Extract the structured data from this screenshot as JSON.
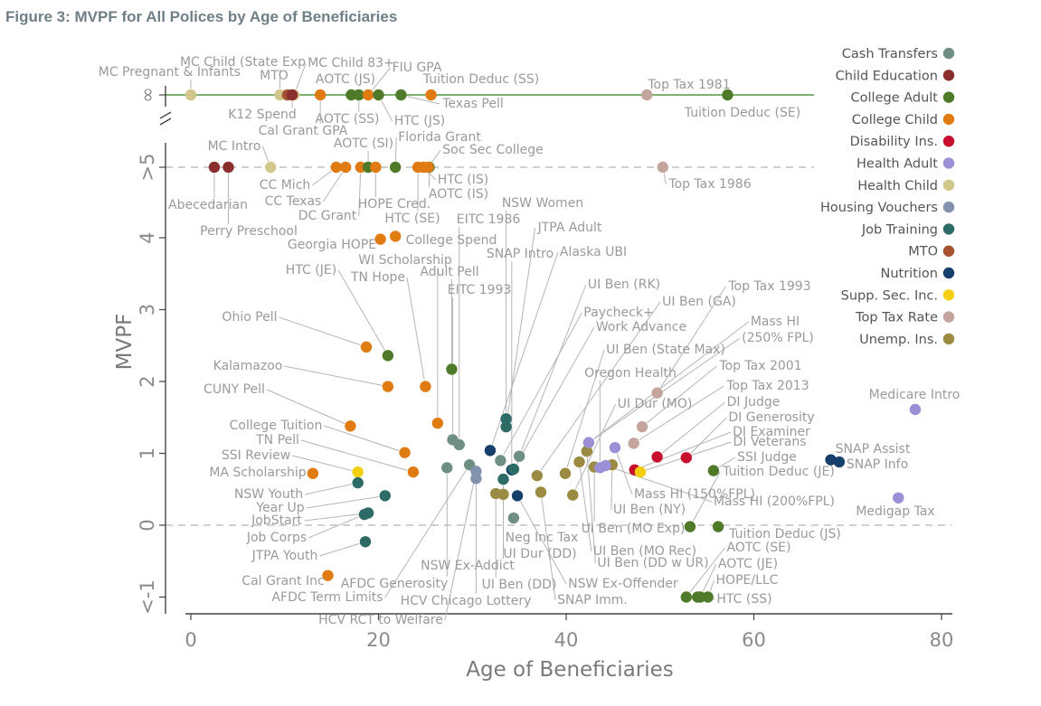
{
  "title": "Figure 3: MVPF for All Polices by Age of Beneficiaries",
  "chart_data": {
    "type": "scatter",
    "xlabel": "Age of Beneficiaries",
    "ylabel": "MVPF",
    "xlim": [
      0,
      80
    ],
    "x_ticks": [
      "0",
      "20",
      "40",
      "60",
      "80"
    ],
    "y_ticks": [
      {
        "label": "<-1",
        "value": -1
      },
      {
        "label": "0",
        "value": 0
      },
      {
        "label": "1",
        "value": 1
      },
      {
        "label": "2",
        "value": 2
      },
      {
        "label": "3",
        "value": 3
      },
      {
        "label": "4",
        "value": 4
      },
      {
        "label": ">5",
        "value": 5
      },
      {
        "label": "∞",
        "value": "inf"
      }
    ],
    "grid": false,
    "legend_position": "right",
    "categories": [
      {
        "name": "Cash Transfers",
        "color": "#6f8f83"
      },
      {
        "name": "Child Education",
        "color": "#8b2e2e"
      },
      {
        "name": "College Adult",
        "color": "#4f7a2a"
      },
      {
        "name": "College Child",
        "color": "#e07b12"
      },
      {
        "name": "Disability Ins.",
        "color": "#c8102e"
      },
      {
        "name": "Health Adult",
        "color": "#9b8fd6"
      },
      {
        "name": "Health Child",
        "color": "#d2c78a"
      },
      {
        "name": "Housing Vouchers",
        "color": "#8392ad"
      },
      {
        "name": "Job Training",
        "color": "#2c6b66"
      },
      {
        "name": "MTO",
        "color": "#a65130"
      },
      {
        "name": "Nutrition",
        "color": "#173f6b"
      },
      {
        "name": "Supp. Sec. Inc.",
        "color": "#f4cf10"
      },
      {
        "name": "Top Tax Rate",
        "color": "#c4a59d"
      },
      {
        "name": "Unemp. Ins.",
        "color": "#9a8a42"
      }
    ],
    "points": [
      {
        "label": "MC Pregnant & Infants",
        "x": 0,
        "y": "inf",
        "cat": 6
      },
      {
        "label": "MC Child (State Exp)",
        "x": 9.5,
        "y": "inf",
        "cat": 6
      },
      {
        "label": "MTO",
        "x": 10.3,
        "y": "inf",
        "cat": 9
      },
      {
        "label": "MC Child 83+",
        "x": 11,
        "y": "inf",
        "cat": 6
      },
      {
        "label": "K12 Spend",
        "x": 10.8,
        "y": "inf",
        "cat": 1
      },
      {
        "label": "Cal Grant GPA",
        "x": 13.8,
        "y": "inf",
        "cat": 3
      },
      {
        "label": "AOTC (JS)",
        "x": 17.1,
        "y": "inf",
        "cat": 2
      },
      {
        "label": "AOTC (SS)",
        "x": 17.9,
        "y": "inf",
        "cat": 2
      },
      {
        "label": "FIU GPA",
        "x": 18.9,
        "y": "inf",
        "cat": 3
      },
      {
        "label": "HTC (JS)",
        "x": 20,
        "y": "inf",
        "cat": 2
      },
      {
        "label": "Texas Pell",
        "x": 22.4,
        "y": "inf",
        "cat": 2
      },
      {
        "label": "Tuition Deduc (SS)",
        "x": 25.6,
        "y": "inf",
        "cat": 3
      },
      {
        "label": "Top Tax 1981",
        "x": 48.6,
        "y": "inf",
        "cat": 12
      },
      {
        "label": "Tuition Deduc (SE)",
        "x": 57.2,
        "y": "inf",
        "cat": 2
      },
      {
        "label": "Abecedarian",
        "x": 2.5,
        "y": 5,
        "cat": 1
      },
      {
        "label": "Perry Preschool",
        "x": 4,
        "y": 5,
        "cat": 1
      },
      {
        "label": "MC Intro",
        "x": 8.5,
        "y": 5,
        "cat": 6
      },
      {
        "label": "CC Mich",
        "x": 15.5,
        "y": 5,
        "cat": 3
      },
      {
        "label": "CC Texas",
        "x": 16.5,
        "y": 5,
        "cat": 3
      },
      {
        "label": "DC Grant",
        "x": 18.1,
        "y": 5,
        "cat": 3
      },
      {
        "label": "AOTC (SI)",
        "x": 18.9,
        "y": 5,
        "cat": 2
      },
      {
        "label": "HOPE Cred.",
        "x": 19.7,
        "y": 5,
        "cat": 3
      },
      {
        "label": "Florida Grant",
        "x": 21.8,
        "y": 5,
        "cat": 2
      },
      {
        "label": "HTC (SE)",
        "x": 24.2,
        "y": 5,
        "cat": 3
      },
      {
        "label": "HTC (IS)",
        "x": 24.8,
        "y": 5,
        "cat": 3
      },
      {
        "label": "AOTC (IS)",
        "x": 25.4,
        "y": 5,
        "cat": 2
      },
      {
        "label": "Soc Sec College",
        "x": 25.3,
        "y": 5,
        "cat": 3
      },
      {
        "label": "Top Tax 1986",
        "x": 50.3,
        "y": 5,
        "cat": 12
      },
      {
        "label": "Georgia HOPE",
        "x": 20.2,
        "y": 3.98,
        "cat": 3
      },
      {
        "label": "College Spend",
        "x": 21.8,
        "y": 4.02,
        "cat": 3
      },
      {
        "label": "Ohio Pell",
        "x": 18.7,
        "y": 2.48,
        "cat": 3
      },
      {
        "label": "HTC (JE)",
        "x": 21,
        "y": 2.36,
        "cat": 2
      },
      {
        "label": "Kalamazoo",
        "x": 21,
        "y": 1.93,
        "cat": 3
      },
      {
        "label": "TN Hope",
        "x": 25,
        "y": 1.93,
        "cat": 3
      },
      {
        "label": "Adult Pell",
        "x": 27.8,
        "y": 2.17,
        "cat": 2
      },
      {
        "label": "CUNY Pell",
        "x": 17,
        "y": 1.38,
        "cat": 3
      },
      {
        "label": "WI Scholarship",
        "x": 26.3,
        "y": 1.42,
        "cat": 3
      },
      {
        "label": "College Tuition",
        "x": 22.8,
        "y": 1.01,
        "cat": 3
      },
      {
        "label": "TN Pell",
        "x": 23.7,
        "y": 0.74,
        "cat": 3
      },
      {
        "label": "MA Scholarship",
        "x": 13,
        "y": 0.72,
        "cat": 3
      },
      {
        "label": "SSI Review",
        "x": 17.8,
        "y": 0.74,
        "cat": 11
      },
      {
        "label": "NSW Youth",
        "x": 17.8,
        "y": 0.59,
        "cat": 8
      },
      {
        "label": "Year Up",
        "x": 20.7,
        "y": 0.41,
        "cat": 8
      },
      {
        "label": "JobStart",
        "x": 18.9,
        "y": 0.17,
        "cat": 8
      },
      {
        "label": "Job Corps",
        "x": 18.5,
        "y": 0.15,
        "cat": 8
      },
      {
        "label": "JTPA Youth",
        "x": 18.6,
        "y": -0.23,
        "cat": 8
      },
      {
        "label": "Cal Grant Inc",
        "x": 14.6,
        "y": -0.7,
        "cat": 3
      },
      {
        "label": "EITC 1993",
        "x": 27.9,
        "y": 1.19,
        "cat": 0
      },
      {
        "label": "EITC 1986",
        "x": 28.6,
        "y": 1.12,
        "cat": 0
      },
      {
        "label": "AFDC Generosity",
        "x": 27.3,
        "y": 0.8,
        "cat": 0
      },
      {
        "label": "AFDC Term Limits",
        "x": 29.7,
        "y": 0.84,
        "cat": 0
      },
      {
        "label": "HCV RCT to Welfare",
        "x": 30.4,
        "y": 0.75,
        "cat": 7
      },
      {
        "label": "HCV Chicago Lottery",
        "x": 30.4,
        "y": 0.65,
        "cat": 7
      },
      {
        "label": "NSW Women",
        "x": 33.6,
        "y": 1.48,
        "cat": 8
      },
      {
        "label": "JTPA Adult",
        "x": 33.6,
        "y": 1.37,
        "cat": 8
      },
      {
        "label": "Alaska UBI",
        "x": 31.9,
        "y": 1.04,
        "cat": 10
      },
      {
        "label": "SNAP Intro",
        "x": 34.2,
        "y": 0.77,
        "cat": 10
      },
      {
        "label": "NSW Ex-Addict",
        "x": 33.3,
        "y": 0.64,
        "cat": 8
      },
      {
        "label": "UI Ben (RK)",
        "x": 35,
        "y": 0.96,
        "cat": 0
      },
      {
        "label": "Paycheck+",
        "x": 33,
        "y": 0.9,
        "cat": 0
      },
      {
        "label": "Work Advance",
        "x": 34.4,
        "y": 0.78,
        "cat": 8
      },
      {
        "label": "UI Ben (GA)",
        "x": 36.9,
        "y": 0.69,
        "cat": 13
      },
      {
        "label": "UI Ben (DD)",
        "x": 32.5,
        "y": 0.44,
        "cat": 13
      },
      {
        "label": "UI Dur (DD)",
        "x": 33.3,
        "y": 0.43,
        "cat": 13
      },
      {
        "label": "Neg Inc Tax",
        "x": 34.4,
        "y": 0.1,
        "cat": 0
      },
      {
        "label": "NSW Ex-Offender",
        "x": 34.8,
        "y": 0.41,
        "cat": 10
      },
      {
        "label": "SNAP Imm.",
        "x": 37.3,
        "y": 0.46,
        "cat": 13
      },
      {
        "label": "UI Ben (State Max)",
        "x": 39.9,
        "y": 0.72,
        "cat": 13
      },
      {
        "label": "UI Dur (MO)",
        "x": 40.7,
        "y": 0.42,
        "cat": 13
      },
      {
        "label": "UI Ben (MO Rec)",
        "x": 41.4,
        "y": 0.88,
        "cat": 13
      },
      {
        "label": "UI Ben (DD w UR)",
        "x": 42.2,
        "y": 1.03,
        "cat": 13
      },
      {
        "label": "UI Ben (MO Exp)",
        "x": 43,
        "y": 0.81,
        "cat": 13
      },
      {
        "label": "UI Ben (NY)",
        "x": 44.9,
        "y": 0.84,
        "cat": 13
      },
      {
        "label": "Oregon Health",
        "x": 43.6,
        "y": 0.8,
        "cat": 5
      },
      {
        "label": "Mass HI (150%FPL)",
        "x": 45.2,
        "y": 1.08,
        "cat": 5
      },
      {
        "label": "Mass HI (200%FPL)",
        "x": 44.2,
        "y": 0.83,
        "cat": 5
      },
      {
        "label": "Mass HI (250% FPL)",
        "x": 42.4,
        "y": 1.15,
        "cat": 5
      },
      {
        "label": "Top Tax 1993",
        "x": 49.7,
        "y": 1.84,
        "cat": 12
      },
      {
        "label": "Top Tax 2001",
        "x": 48.1,
        "y": 1.37,
        "cat": 12
      },
      {
        "label": "Top Tax 2013",
        "x": 47.2,
        "y": 1.14,
        "cat": 12
      },
      {
        "label": "DI Judge",
        "x": 49.7,
        "y": 0.95,
        "cat": 4
      },
      {
        "label": "DI Generosity",
        "x": 52.8,
        "y": 0.94,
        "cat": 4
      },
      {
        "label": "DI Examiner",
        "x": 47.3,
        "y": 0.77,
        "cat": 4
      },
      {
        "label": "DI Veterans",
        "x": 47.9,
        "y": 0.74,
        "cat": 11
      },
      {
        "label": "SSI Judge",
        "x": 55.7,
        "y": 0.76,
        "cat": 2
      },
      {
        "label": "Tuition Deduc (JE)",
        "x": 53.2,
        "y": -0.02,
        "cat": 2
      },
      {
        "label": "Tuition Deduc (JS)",
        "x": 56.2,
        "y": -0.02,
        "cat": 2
      },
      {
        "label": "AOTC (SE)",
        "x": 52.8,
        "y": -1.0,
        "cat": 2
      },
      {
        "label": "AOTC (JE)",
        "x": 54.3,
        "y": -1.0,
        "cat": 2
      },
      {
        "label": "HOPE/LLC",
        "x": 55.1,
        "y": -1.0,
        "cat": 2
      },
      {
        "label": "HTC (SS)",
        "x": 54,
        "y": -1.0,
        "cat": 2
      },
      {
        "label": "SNAP Assist",
        "x": 68.2,
        "y": 0.91,
        "cat": 10
      },
      {
        "label": "SNAP Info",
        "x": 69.1,
        "y": 0.88,
        "cat": 10
      },
      {
        "label": "Medicare Intro",
        "x": 77.2,
        "y": 1.61,
        "cat": 5
      },
      {
        "label": "Medigap Tax",
        "x": 75.4,
        "y": 0.38,
        "cat": 5
      }
    ],
    "labels": [
      {
        "text": "MC Child (State Exp",
        "x": 0,
        "y": "inf",
        "to": "MC Child (State Exp)"
      },
      {
        "text": "MC Pregnant & Infants",
        "x": 0,
        "y": "inf",
        "to": "MC Pregnant & Infants"
      },
      {
        "text": "MTO",
        "x": 0,
        "y": "inf",
        "to": "MTO"
      },
      {
        "text": "MC Child 83+",
        "x": 0,
        "y": "inf",
        "to": "MC Child 83+"
      },
      {
        "text": "FIU GPA",
        "x": 0,
        "y": "inf",
        "to": "FIU GPA"
      },
      {
        "text": "AOTC (JS)",
        "x": 0,
        "y": "inf",
        "to": "AOTC (JS)"
      },
      {
        "text": "Tuition Deduc (SS)",
        "x": 0,
        "y": "inf",
        "to": "Tuition Deduc (SS)"
      },
      {
        "text": "K12 Spend",
        "x": 0,
        "y": "inf",
        "to": "K12 Spend"
      },
      {
        "text": "AOTC (SS)",
        "x": 0,
        "y": "inf",
        "to": "AOTC (SS)"
      },
      {
        "text": "HTC (JS)",
        "x": 0,
        "y": "inf",
        "to": "HTC (JS)"
      },
      {
        "text": "Texas Pell",
        "x": 0,
        "y": "inf",
        "to": "Texas Pell"
      },
      {
        "text": "Cal Grant GPA",
        "x": 0,
        "y": "inf",
        "to": "Cal Grant GPA"
      },
      {
        "text": "Top Tax 1981",
        "x": 0,
        "y": "inf",
        "to": "Top Tax 1981"
      },
      {
        "text": "Tuition Deduc (SE)",
        "x": 0,
        "y": "inf",
        "to": "Tuition Deduc (SE)"
      },
      {
        "text": "AOTC (SI)",
        "to": "AOTC (SI)"
      },
      {
        "text": "Florida Grant",
        "to": "Florida Grant"
      },
      {
        "text": "MC Intro",
        "to": "MC Intro"
      },
      {
        "text": "Soc Sec College",
        "to": "Soc Sec College"
      },
      {
        "text": "HTC (IS)",
        "to": "HTC (IS)"
      },
      {
        "text": "AOTC (IS)",
        "to": "AOTC (IS)"
      },
      {
        "text": "CC Mich",
        "to": "CC Mich"
      },
      {
        "text": "CC Texas",
        "to": "CC Texas"
      },
      {
        "text": "Abecedarian",
        "to": "Abecedarian"
      },
      {
        "text": "HOPE Cred.",
        "to": "HOPE Cred."
      },
      {
        "text": "DC Grant",
        "to": "DC Grant"
      },
      {
        "text": "HTC (SE)",
        "to": "HTC (SE)"
      },
      {
        "text": "Perry Preschool",
        "to": "Perry Preschool"
      },
      {
        "text": "Top Tax 1986",
        "to": "Top Tax 1986"
      },
      {
        "text": "NSW Women",
        "to": "NSW Women"
      },
      {
        "text": "EITC 1986",
        "to": "EITC 1986"
      },
      {
        "text": "JTPA Adult",
        "to": "JTPA Adult"
      },
      {
        "text": "Georgia HOPE",
        "to": "Georgia HOPE"
      },
      {
        "text": "College Spend",
        "to": "College Spend"
      },
      {
        "text": "SNAP Intro",
        "to": "SNAP Intro"
      },
      {
        "text": "Alaska UBI",
        "to": "Alaska UBI"
      },
      {
        "text": "WI Scholarship",
        "to": "WI Scholarship"
      },
      {
        "text": "HTC (JE)",
        "to": "HTC (JE)"
      },
      {
        "text": "Adult Pell",
        "to": "Adult Pell"
      },
      {
        "text": "TN Hope",
        "to": "TN Hope"
      },
      {
        "text": "EITC 1993",
        "to": "EITC 1993"
      },
      {
        "text": "UI Ben (RK)",
        "to": "UI Ben (RK)"
      },
      {
        "text": "Top Tax 1993",
        "to": "Top Tax 1993"
      },
      {
        "text": "UI Ben (GA)",
        "to": "UI Ben (GA)"
      },
      {
        "text": "Paycheck+",
        "to": "Paycheck+"
      },
      {
        "text": "Mass HI",
        "to": "Mass HI (250% FPL)"
      },
      {
        "text": "Work Advance",
        "to": "Work Advance"
      },
      {
        "text": "(250% FPL)",
        "to": "Mass HI (250% FPL)"
      },
      {
        "text": "UI Ben (State Max)",
        "to": "UI Ben (State Max)"
      },
      {
        "text": "Ohio Pell",
        "to": "Ohio Pell"
      },
      {
        "text": "Top Tax 2001",
        "to": "Top Tax 2001"
      },
      {
        "text": "Oregon Health",
        "to": "Oregon Health"
      },
      {
        "text": "Kalamazoo",
        "to": "Kalamazoo"
      },
      {
        "text": "Top Tax 2013",
        "to": "Top Tax 2013"
      },
      {
        "text": "CUNY Pell",
        "to": "CUNY Pell"
      },
      {
        "text": "DI Judge",
        "to": "DI Judge"
      },
      {
        "text": "UI Dur (MO)",
        "to": "UI Dur (MO)"
      },
      {
        "text": "DI Generosity",
        "to": "DI Generosity"
      },
      {
        "text": "College Tuition",
        "to": "College Tuition"
      },
      {
        "text": "DI Examiner",
        "to": "DI Examiner"
      },
      {
        "text": "TN Pell",
        "to": "TN Pell"
      },
      {
        "text": "DI Veterans",
        "to": "DI Veterans"
      },
      {
        "text": "SNAP Assist",
        "to": "SNAP Assist"
      },
      {
        "text": "SSI Review",
        "to": "SSI Review"
      },
      {
        "text": "SSI Judge",
        "to": "SSI Judge"
      },
      {
        "text": "SNAP Info",
        "to": "SNAP Info"
      },
      {
        "text": "MA Scholarship",
        "to": "MA Scholarship"
      },
      {
        "text": "Tuition Deduc (JE)",
        "to": "Tuition Deduc (JE)"
      },
      {
        "text": "Mass HI (150%FPL)",
        "to": "Mass HI (150%FPL)"
      },
      {
        "text": "NSW Youth",
        "to": "NSW Youth"
      },
      {
        "text": "Mass HI (200%FPL)",
        "to": "Mass HI (200%FPL)"
      },
      {
        "text": "UI Ben (NY)",
        "to": "UI Ben (NY)"
      },
      {
        "text": "Year Up",
        "to": "Year Up"
      },
      {
        "text": "Medigap Tax",
        "to": "Medigap Tax"
      },
      {
        "text": "JobStart",
        "to": "JobStart"
      },
      {
        "text": "UI Ben (MO Exp)",
        "to": "UI Ben (MO Exp)"
      },
      {
        "text": "Neg Inc Tax",
        "to": "Neg Inc Tax"
      },
      {
        "text": "Tuition Deduc (JS)",
        "to": "Tuition Deduc (JS)"
      },
      {
        "text": "Job Corps",
        "to": "Job Corps"
      },
      {
        "text": "AOTC (SE)",
        "to": "AOTC (SE)"
      },
      {
        "text": "UI Dur (DD)",
        "to": "UI Dur (DD)"
      },
      {
        "text": "UI Ben (MO Rec)",
        "to": "UI Ben (MO Rec)"
      },
      {
        "text": "JTPA Youth",
        "to": "JTPA Youth"
      },
      {
        "text": "NSW Ex-Addict",
        "to": "NSW Ex-Addict"
      },
      {
        "text": "UI Ben (DD w UR)",
        "to": "UI Ben (DD w UR)"
      },
      {
        "text": "AOTC (JE)",
        "to": "AOTC (JE)"
      },
      {
        "text": "Cal Grant Inc",
        "to": "Cal Grant Inc"
      },
      {
        "text": "AFDC Generosity",
        "to": "AFDC Generosity"
      },
      {
        "text": "NSW Ex-Offender",
        "to": "NSW Ex-Offender"
      },
      {
        "text": "HOPE/LLC",
        "to": "HOPE/LLC"
      },
      {
        "text": "UI Ben (DD)",
        "to": "UI Ben (DD)"
      },
      {
        "text": "AFDC Term Limits",
        "to": "AFDC Term Limits"
      },
      {
        "text": "HTC (SS)",
        "to": "HTC (SS)"
      },
      {
        "text": "HCV Chicago Lottery",
        "to": "HCV Chicago Lottery"
      },
      {
        "text": "SNAP Imm.",
        "to": "SNAP Imm."
      },
      {
        "text": "Medicare Intro",
        "to": "Medicare Intro"
      },
      {
        "text": "HCV RCT to Welfare",
        "to": "HCV RCT to Welfare"
      }
    ]
  }
}
